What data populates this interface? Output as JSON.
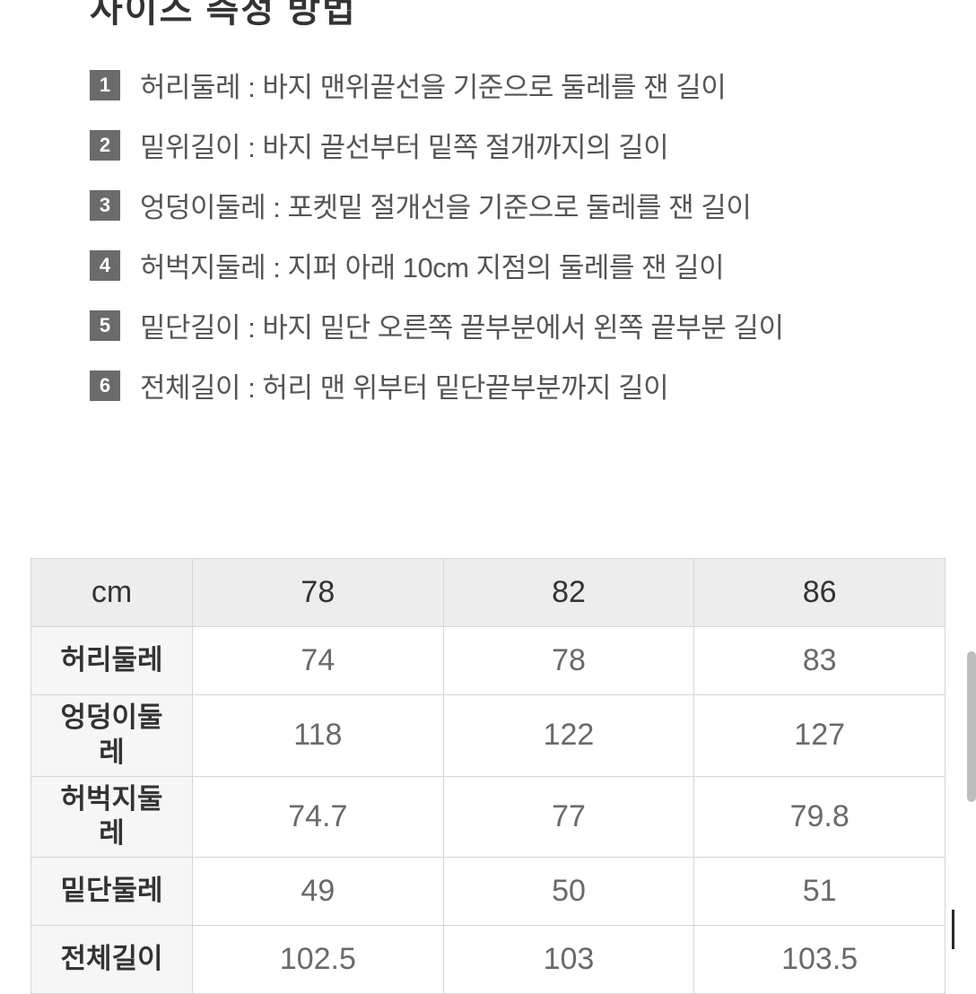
{
  "title_partial": "사이즈 측정 방법",
  "definitions": [
    {
      "num": "1",
      "text": "허리둘레 : 바지 맨위끝선을 기준으로 둘레를 잰 길이"
    },
    {
      "num": "2",
      "text": "밑위길이 : 바지 끝선부터 밑쪽 절개까지의 길이"
    },
    {
      "num": "3",
      "text": "엉덩이둘레 : 포켓밑 절개선을 기준으로 둘레를 잰 길이"
    },
    {
      "num": "4",
      "text": "허벅지둘레 : 지퍼 아래 10cm 지점의 둘레를 잰 길이"
    },
    {
      "num": "5",
      "text": "밑단길이 : 바지 밑단 오른쪽 끝부분에서 왼쪽 끝부분 길이"
    },
    {
      "num": "6",
      "text": "전체길이 : 허리 맨 위부터 밑단끝부분까지 길이"
    }
  ],
  "size_table": {
    "type": "table",
    "unit_header": "cm",
    "columns": [
      "78",
      "82",
      "86"
    ],
    "rows": [
      {
        "label": "허리둘레",
        "values": [
          "74",
          "78",
          "83"
        ],
        "tall": false
      },
      {
        "label": "엉덩이둘레",
        "values": [
          "118",
          "122",
          "127"
        ],
        "tall": true
      },
      {
        "label": "허벅지둘레",
        "values": [
          "74.7",
          "77",
          "79.8"
        ],
        "tall": true
      },
      {
        "label": "밑단둘레",
        "values": [
          "49",
          "50",
          "51"
        ],
        "tall": false
      },
      {
        "label": "전체길이",
        "values": [
          "102.5",
          "103",
          "103.5"
        ],
        "tall": false
      }
    ],
    "colors": {
      "header_bg": "#ededed",
      "rowhead_bg": "#f6f6f6",
      "border": "#d6d6d6",
      "header_text": "#333333",
      "cell_text": "#6a6a6a"
    },
    "font_sizes": {
      "header": 34,
      "rowhead": 31,
      "cell": 34
    }
  }
}
